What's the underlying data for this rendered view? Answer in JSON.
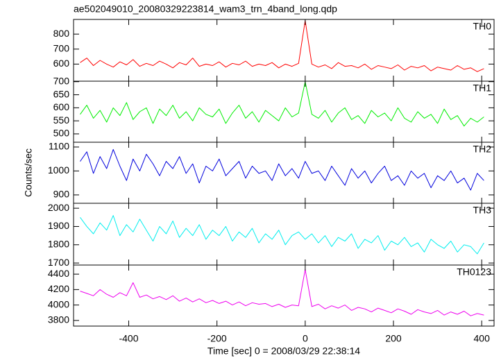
{
  "title": "ae502049010_20080329223814_wam3_trn_4band_long.qdp",
  "y_label": "Counts/sec",
  "x_label": "Time [sec] 0 = 2008/03/29 22:38:14",
  "chart_data": [
    {
      "type": "line",
      "label": "TH0",
      "color": "#ff0000",
      "x": [
        -510,
        -495,
        -480,
        -465,
        -450,
        -435,
        -420,
        -405,
        -390,
        -375,
        -360,
        -345,
        -330,
        -315,
        -300,
        -285,
        -270,
        -255,
        -240,
        -225,
        -210,
        -195,
        -180,
        -165,
        -150,
        -135,
        -120,
        -105,
        -90,
        -75,
        -60,
        -45,
        -30,
        -15,
        0,
        15,
        30,
        45,
        60,
        75,
        90,
        105,
        120,
        135,
        150,
        165,
        180,
        195,
        210,
        225,
        240,
        255,
        270,
        285,
        300,
        315,
        330,
        345,
        360,
        375,
        390,
        405
      ],
      "values": [
        610,
        640,
        590,
        625,
        600,
        580,
        615,
        595,
        630,
        585,
        605,
        590,
        620,
        600,
        575,
        610,
        595,
        640,
        585,
        600,
        590,
        615,
        580,
        605,
        595,
        620,
        585,
        600,
        590,
        610,
        575,
        600,
        585,
        605,
        890,
        600,
        580,
        595,
        570,
        610,
        585,
        590,
        575,
        600,
        565,
        590,
        580,
        570,
        595,
        560,
        585,
        575,
        590,
        555,
        580,
        570,
        560,
        590,
        565,
        575,
        550,
        570
      ],
      "xlim": [
        -525,
        428
      ],
      "xticks": [
        -400,
        -200,
        0,
        200,
        400
      ],
      "ylim": [
        486,
        898
      ],
      "yticks": [
        600,
        700,
        800
      ]
    },
    {
      "type": "line",
      "label": "TH1",
      "color": "#00ee00",
      "x": [
        -510,
        -495,
        -480,
        -465,
        -450,
        -435,
        -420,
        -405,
        -390,
        -375,
        -360,
        -345,
        -330,
        -315,
        -300,
        -285,
        -270,
        -255,
        -240,
        -225,
        -210,
        -195,
        -180,
        -165,
        -150,
        -135,
        -120,
        -105,
        -90,
        -75,
        -60,
        -45,
        -30,
        -15,
        0,
        15,
        30,
        45,
        60,
        75,
        90,
        105,
        120,
        135,
        150,
        165,
        180,
        195,
        210,
        225,
        240,
        255,
        270,
        285,
        300,
        315,
        330,
        345,
        360,
        375,
        390,
        405
      ],
      "values": [
        575,
        610,
        560,
        590,
        545,
        600,
        570,
        620,
        555,
        585,
        600,
        540,
        595,
        570,
        610,
        560,
        585,
        550,
        600,
        575,
        565,
        595,
        540,
        580,
        610,
        560,
        585,
        545,
        590,
        570,
        550,
        600,
        565,
        580,
        700,
        575,
        560,
        590,
        545,
        580,
        600,
        555,
        570,
        540,
        590,
        565,
        580,
        550,
        600,
        560,
        545,
        585,
        560,
        575,
        540,
        595,
        555,
        570,
        530,
        560,
        545,
        565
      ],
      "xlim": [
        -525,
        428
      ],
      "xticks": [
        -400,
        -200,
        0,
        200,
        400
      ],
      "ylim": [
        468,
        702
      ],
      "yticks": [
        500,
        550,
        600,
        650,
        700
      ]
    },
    {
      "type": "line",
      "label": "TH2",
      "color": "#0000dd",
      "x": [
        -510,
        -495,
        -480,
        -465,
        -450,
        -435,
        -420,
        -405,
        -390,
        -375,
        -360,
        -345,
        -330,
        -315,
        -300,
        -285,
        -270,
        -255,
        -240,
        -225,
        -210,
        -195,
        -180,
        -165,
        -150,
        -135,
        -120,
        -105,
        -90,
        -75,
        -60,
        -45,
        -30,
        -15,
        0,
        15,
        30,
        45,
        60,
        75,
        90,
        105,
        120,
        135,
        150,
        165,
        180,
        195,
        210,
        225,
        240,
        255,
        270,
        285,
        300,
        315,
        330,
        345,
        360,
        375,
        390,
        405
      ],
      "values": [
        1040,
        1080,
        990,
        1060,
        1010,
        1090,
        1020,
        960,
        1050,
        1000,
        1070,
        1030,
        980,
        1040,
        1010,
        1060,
        990,
        1030,
        950,
        1020,
        1000,
        1050,
        980,
        1010,
        1040,
        970,
        1020,
        990,
        1000,
        960,
        1030,
        980,
        1010,
        970,
        1040,
        990,
        1000,
        960,
        1020,
        980,
        940,
        1010,
        970,
        1000,
        950,
        990,
        1020,
        960,
        980,
        940,
        1000,
        970,
        990,
        930,
        980,
        960,
        1000,
        950,
        970,
        920,
        990,
        960
      ],
      "xlim": [
        -525,
        428
      ],
      "xticks": [
        -400,
        -200,
        0,
        200,
        400
      ],
      "ylim": [
        865,
        1120
      ],
      "yticks": [
        900,
        1000,
        1100
      ]
    },
    {
      "type": "line",
      "label": "TH3",
      "color": "#00eeee",
      "x": [
        -510,
        -495,
        -480,
        -465,
        -450,
        -435,
        -420,
        -405,
        -390,
        -375,
        -360,
        -345,
        -330,
        -315,
        -300,
        -285,
        -270,
        -255,
        -240,
        -225,
        -210,
        -195,
        -180,
        -165,
        -150,
        -135,
        -120,
        -105,
        -90,
        -75,
        -60,
        -45,
        -30,
        -15,
        0,
        15,
        30,
        45,
        60,
        75,
        90,
        105,
        120,
        135,
        150,
        165,
        180,
        195,
        210,
        225,
        240,
        255,
        270,
        285,
        300,
        315,
        330,
        345,
        360,
        375,
        390,
        405
      ],
      "values": [
        1950,
        1900,
        1860,
        1920,
        1880,
        1960,
        1850,
        1910,
        1870,
        1940,
        1880,
        1820,
        1900,
        1860,
        1930,
        1840,
        1890,
        1850,
        1910,
        1830,
        1880,
        1850,
        1900,
        1820,
        1870,
        1840,
        1890,
        1810,
        1860,
        1830,
        1880,
        1800,
        1850,
        1870,
        1830,
        1860,
        1810,
        1850,
        1790,
        1840,
        1820,
        1860,
        1780,
        1830,
        1810,
        1850,
        1770,
        1820,
        1800,
        1840,
        1790,
        1810,
        1760,
        1830,
        1800,
        1780,
        1820,
        1760,
        1800,
        1790,
        1750,
        1810
      ],
      "xlim": [
        -525,
        428
      ],
      "xticks": [
        -400,
        -200,
        0,
        200,
        400
      ],
      "ylim": [
        1689,
        2027
      ],
      "yticks": [
        1700,
        1800,
        1900,
        2000
      ]
    },
    {
      "type": "line",
      "label": "TH0123",
      "color": "#ee00ee",
      "x": [
        -510,
        -495,
        -480,
        -465,
        -450,
        -435,
        -420,
        -405,
        -390,
        -375,
        -360,
        -345,
        -330,
        -315,
        -300,
        -285,
        -270,
        -255,
        -240,
        -225,
        -210,
        -195,
        -180,
        -165,
        -150,
        -135,
        -120,
        -105,
        -90,
        -75,
        -60,
        -45,
        -30,
        -15,
        0,
        15,
        30,
        45,
        60,
        75,
        90,
        105,
        120,
        135,
        150,
        165,
        180,
        195,
        210,
        225,
        240,
        255,
        270,
        285,
        300,
        315,
        330,
        345,
        360,
        375,
        390,
        405
      ],
      "values": [
        4180,
        4150,
        4120,
        4200,
        4140,
        4100,
        4160,
        4120,
        4290,
        4100,
        4130,
        4080,
        4110,
        4070,
        4120,
        4050,
        4090,
        4040,
        4080,
        4030,
        4060,
        4020,
        4050,
        4000,
        4040,
        3990,
        4030,
        4010,
        4020,
        3980,
        4010,
        3970,
        4000,
        3990,
        4460,
        3980,
        4010,
        3950,
        3990,
        3960,
        4000,
        3930,
        3970,
        3950,
        3910,
        3960,
        3930,
        3900,
        3950,
        3920,
        3880,
        3940,
        3910,
        3890,
        3930,
        3870,
        3910,
        3880,
        3920,
        3860,
        3890,
        3870
      ],
      "xlim": [
        -525,
        428
      ],
      "xticks": [
        -400,
        -200,
        0,
        200,
        400
      ],
      "ylim": [
        3727,
        4518
      ],
      "yticks": [
        3800,
        4000,
        4200,
        4400
      ]
    }
  ]
}
